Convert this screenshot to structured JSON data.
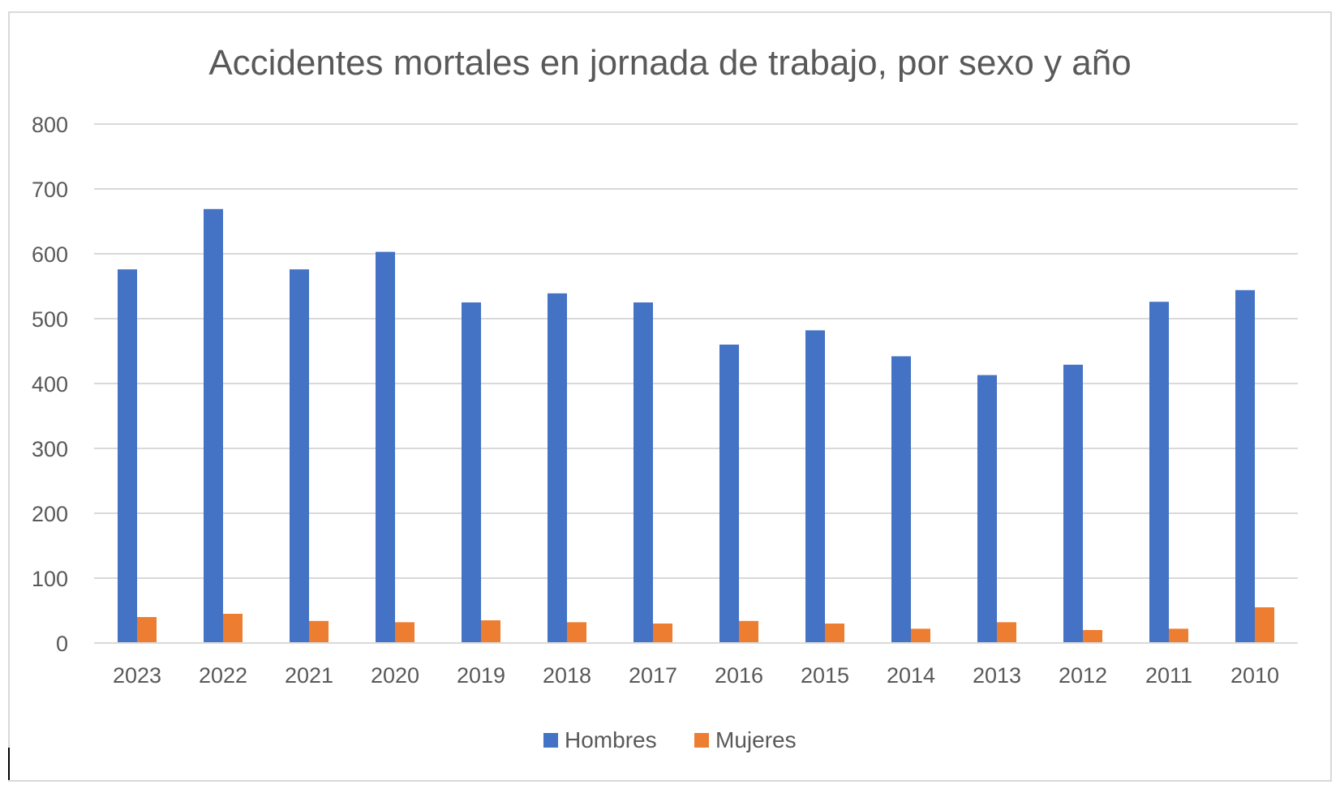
{
  "chart_data": {
    "type": "bar",
    "title": "Accidentes mortales en jornada de trabajo, por sexo y año",
    "xlabel": "",
    "ylabel": "",
    "categories": [
      "2023",
      "2022",
      "2021",
      "2020",
      "2019",
      "2018",
      "2017",
      "2016",
      "2015",
      "2014",
      "2013",
      "2012",
      "2011",
      "2010"
    ],
    "series": [
      {
        "name": "Hombres",
        "color": "#4472c4",
        "values": [
          576,
          669,
          576,
          603,
          525,
          539,
          525,
          460,
          482,
          442,
          413,
          429,
          526,
          544
        ]
      },
      {
        "name": "Mujeres",
        "color": "#ed7d31",
        "values": [
          40,
          45,
          34,
          32,
          35,
          32,
          30,
          34,
          30,
          22,
          32,
          20,
          22,
          55
        ]
      }
    ],
    "ylim": [
      0,
      800
    ],
    "yticks": [
      0,
      100,
      200,
      300,
      400,
      500,
      600,
      700,
      800
    ],
    "grid": true,
    "legend_position": "bottom"
  }
}
